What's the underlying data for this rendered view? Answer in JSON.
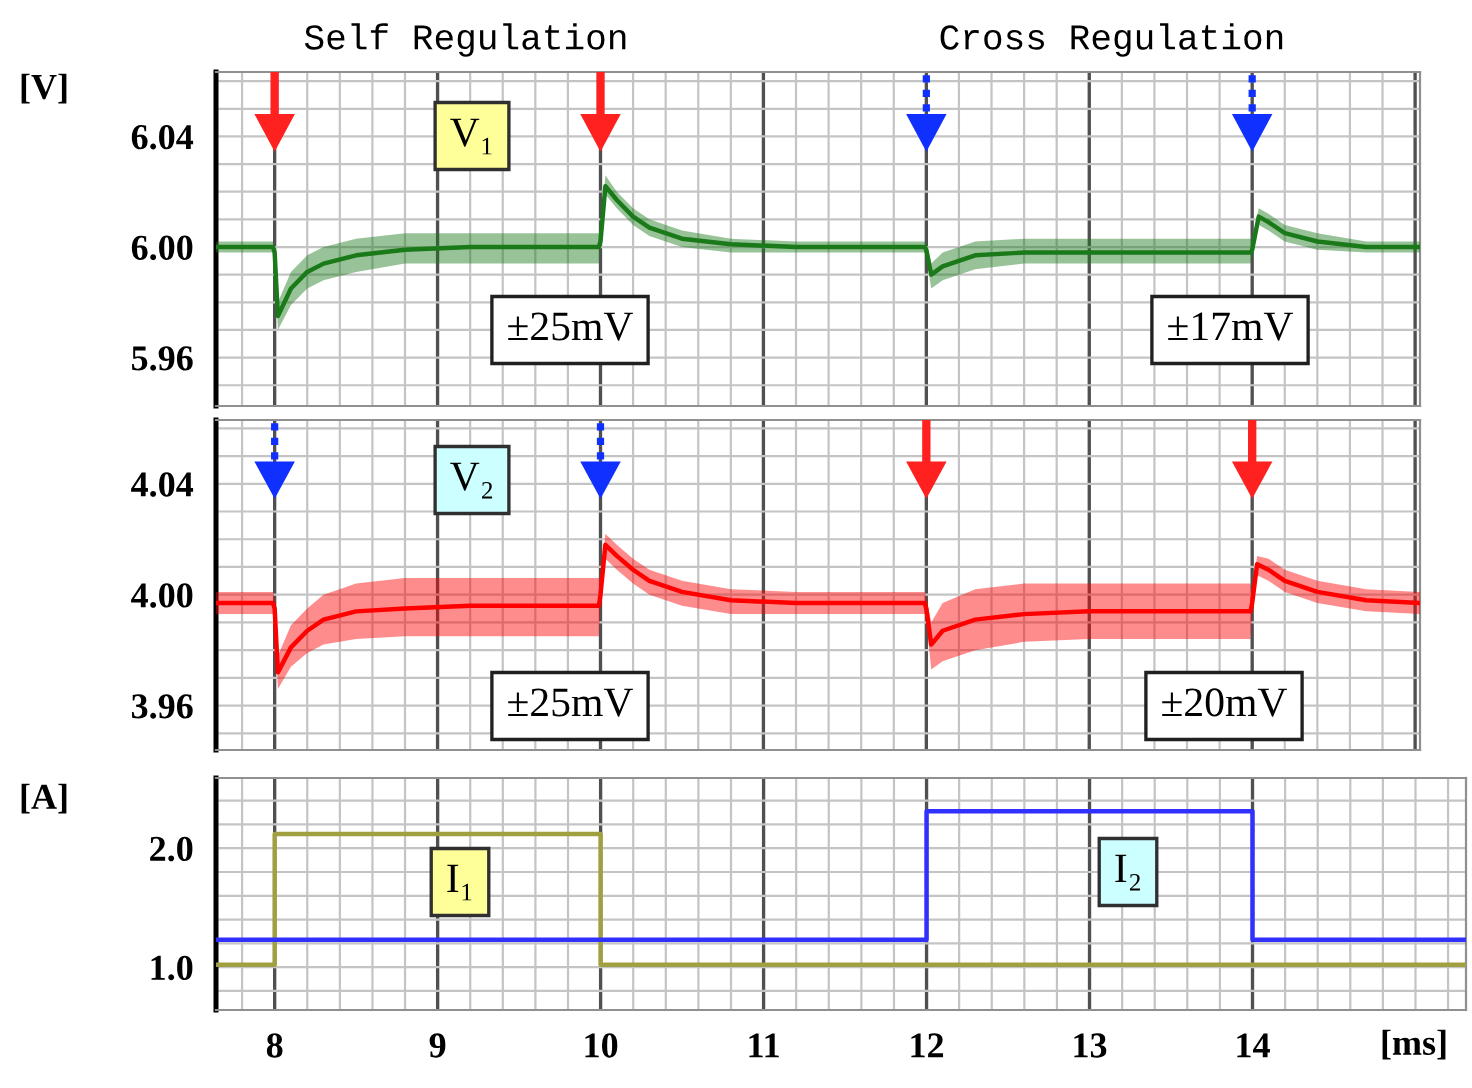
{
  "chart_data": [
    {
      "type": "line",
      "ylabel": "[V]",
      "annotations": [
        "Self Regulation",
        "Cross Regulation",
        "±25mV",
        "±17mV"
      ],
      "grid": true,
      "tick_labels": "y",
      "xlim": [
        7.64,
        15.03
      ],
      "ylim": [
        5.9425,
        6.0633
      ],
      "xticks": [
        {
          "value": 7.8,
          "label": null
        },
        8,
        {
          "value": 8.2,
          "label": null
        },
        {
          "value": 8.4,
          "label": null
        },
        {
          "value": 8.6,
          "label": null
        },
        {
          "value": 8.8,
          "label": null
        },
        9,
        {
          "value": 9.2,
          "label": null
        },
        {
          "value": 9.4,
          "label": null
        },
        {
          "value": 9.6,
          "label": null
        },
        {
          "value": 9.8,
          "label": null
        },
        10,
        {
          "value": 10.2,
          "label": null
        },
        {
          "value": 10.4,
          "label": null
        },
        {
          "value": 10.6,
          "label": null
        },
        {
          "value": 10.8,
          "label": null
        },
        11,
        {
          "value": 11.2,
          "label": null
        },
        {
          "value": 11.4,
          "label": null
        },
        {
          "value": 11.6,
          "label": null
        },
        {
          "value": 11.8,
          "label": null
        },
        12,
        {
          "value": 12.2,
          "label": null
        },
        {
          "value": 12.4,
          "label": null
        },
        {
          "value": 12.6,
          "label": null
        },
        {
          "value": 12.8,
          "label": null
        },
        13,
        {
          "value": 13.2,
          "label": null
        },
        {
          "value": 13.4,
          "label": null
        },
        {
          "value": 13.6,
          "label": null
        },
        {
          "value": 13.8,
          "label": null
        },
        14,
        {
          "value": 14.2,
          "label": null
        },
        {
          "value": 14.4,
          "label": null
        },
        {
          "value": 14.6,
          "label": null
        },
        {
          "value": 14.8,
          "label": null
        },
        15
      ],
      "yticks": [
        {
          "value": 5.95,
          "label": null
        },
        {
          "value": 5.96,
          "label": "5.96"
        },
        {
          "value": 5.97,
          "label": null
        },
        {
          "value": 5.98,
          "label": null
        },
        {
          "value": 5.99,
          "label": null
        },
        {
          "value": 6.0,
          "label": "6.00"
        },
        {
          "value": 6.01,
          "label": null
        },
        {
          "value": 6.02,
          "label": null
        },
        {
          "value": 6.03,
          "label": null
        },
        {
          "value": 6.04,
          "label": "6.04"
        },
        {
          "value": 6.05,
          "label": null
        },
        {
          "value": 6.06,
          "label": null
        }
      ],
      "series": [
        {
          "name": "V₁",
          "color": "#1a7a1a",
          "x": [
            7.64,
            7.99,
            8.0,
            8.02,
            8.1,
            8.2,
            8.3,
            8.5,
            8.8,
            9.2,
            9.99,
            10.0,
            10.03,
            10.1,
            10.2,
            10.3,
            10.5,
            10.8,
            11.2,
            11.99,
            12.0,
            12.03,
            12.1,
            12.3,
            12.6,
            13.0,
            13.99,
            14.0,
            14.04,
            14.1,
            14.2,
            14.4,
            14.7,
            15.03
          ],
          "values": [
            6.0,
            6.0,
            5.998,
            5.975,
            5.985,
            5.991,
            5.994,
            5.997,
            5.999,
            6.0,
            6.0,
            6.002,
            6.022,
            6.017,
            6.011,
            6.007,
            6.003,
            6.001,
            6.0,
            6.0,
            5.999,
            5.99,
            5.993,
            5.997,
            5.998,
            5.998,
            5.998,
            5.999,
            6.011,
            6.009,
            6.005,
            6.002,
            6.0,
            6.0
          ],
          "lower": [
            5.998,
            5.998,
            5.996,
            5.97,
            5.979,
            5.985,
            5.988,
            5.991,
            5.994,
            5.994,
            5.994,
            5.999,
            6.019,
            6.014,
            6.008,
            6.004,
            6.0,
            5.998,
            5.998,
            5.998,
            5.996,
            5.985,
            5.988,
            5.992,
            5.994,
            5.994,
            5.994,
            5.996,
            6.008,
            6.006,
            6.002,
            5.999,
            5.998,
            5.998
          ],
          "upper": [
            6.002,
            6.002,
            6.0,
            5.98,
            5.991,
            5.997,
            6.0,
            6.003,
            6.005,
            6.005,
            6.005,
            6.005,
            6.026,
            6.02,
            6.014,
            6.01,
            6.006,
            6.003,
            6.002,
            6.002,
            6.002,
            5.994,
            5.998,
            6.002,
            6.003,
            6.003,
            6.003,
            6.002,
            6.014,
            6.012,
            6.008,
            6.005,
            6.002,
            6.002
          ]
        }
      ]
    },
    {
      "type": "line",
      "annotations": [
        "±25mV",
        "±20mV"
      ],
      "grid": true,
      "tick_labels": "y",
      "xlim": [
        7.64,
        15.03
      ],
      "ylim": [
        3.944,
        4.063
      ],
      "xticks": [
        {
          "value": 7.8,
          "label": null
        },
        8,
        {
          "value": 8.2,
          "label": null
        },
        {
          "value": 8.4,
          "label": null
        },
        {
          "value": 8.6,
          "label": null
        },
        {
          "value": 8.8,
          "label": null
        },
        9,
        {
          "value": 9.2,
          "label": null
        },
        {
          "value": 9.4,
          "label": null
        },
        {
          "value": 9.6,
          "label": null
        },
        {
          "value": 9.8,
          "label": null
        },
        10,
        {
          "value": 10.2,
          "label": null
        },
        {
          "value": 10.4,
          "label": null
        },
        {
          "value": 10.6,
          "label": null
        },
        {
          "value": 10.8,
          "label": null
        },
        11,
        {
          "value": 11.2,
          "label": null
        },
        {
          "value": 11.4,
          "label": null
        },
        {
          "value": 11.6,
          "label": null
        },
        {
          "value": 11.8,
          "label": null
        },
        12,
        {
          "value": 12.2,
          "label": null
        },
        {
          "value": 12.4,
          "label": null
        },
        {
          "value": 12.6,
          "label": null
        },
        {
          "value": 12.8,
          "label": null
        },
        13,
        {
          "value": 13.2,
          "label": null
        },
        {
          "value": 13.4,
          "label": null
        },
        {
          "value": 13.6,
          "label": null
        },
        {
          "value": 13.8,
          "label": null
        },
        14,
        {
          "value": 14.2,
          "label": null
        },
        {
          "value": 14.4,
          "label": null
        },
        {
          "value": 14.6,
          "label": null
        },
        {
          "value": 14.8,
          "label": null
        },
        15
      ],
      "yticks": [
        {
          "value": 3.95,
          "label": null
        },
        {
          "value": 3.96,
          "label": "3.96"
        },
        {
          "value": 3.97,
          "label": null
        },
        {
          "value": 3.98,
          "label": null
        },
        {
          "value": 3.99,
          "label": null
        },
        {
          "value": 4.0,
          "label": "4.00"
        },
        {
          "value": 4.01,
          "label": null
        },
        {
          "value": 4.02,
          "label": null
        },
        {
          "value": 4.03,
          "label": null
        },
        {
          "value": 4.04,
          "label": "4.04"
        },
        {
          "value": 4.05,
          "label": null
        },
        {
          "value": 4.06,
          "label": null
        }
      ],
      "series": [
        {
          "name": "V₂",
          "color": "#ff0000",
          "x": [
            7.64,
            7.99,
            8.0,
            8.02,
            8.1,
            8.2,
            8.3,
            8.5,
            8.8,
            9.2,
            9.99,
            10.0,
            10.03,
            10.1,
            10.2,
            10.3,
            10.5,
            10.8,
            11.2,
            11.99,
            12.0,
            12.03,
            12.1,
            12.3,
            12.6,
            13.0,
            13.99,
            14.0,
            14.03,
            14.1,
            14.2,
            14.4,
            14.7,
            15.03
          ],
          "values": [
            3.997,
            3.997,
            3.995,
            3.972,
            3.981,
            3.987,
            3.991,
            3.994,
            3.995,
            3.996,
            3.996,
            4.0,
            4.018,
            4.014,
            4.009,
            4.005,
            4.001,
            3.998,
            3.997,
            3.997,
            3.995,
            3.982,
            3.987,
            3.991,
            3.993,
            3.994,
            3.994,
            3.997,
            4.011,
            4.009,
            4.005,
            4.001,
            3.998,
            3.997
          ],
          "lower": [
            3.993,
            3.993,
            3.991,
            3.966,
            3.974,
            3.979,
            3.982,
            3.984,
            3.985,
            3.985,
            3.985,
            3.996,
            4.013,
            4.009,
            4.004,
            4.0,
            3.996,
            3.993,
            3.993,
            3.993,
            3.991,
            3.973,
            3.976,
            3.98,
            3.983,
            3.984,
            3.984,
            3.993,
            4.007,
            4.005,
            4.001,
            3.997,
            3.994,
            3.993
          ],
          "upper": [
            4.001,
            4.001,
            3.999,
            3.978,
            3.989,
            3.995,
            4.0,
            4.004,
            4.006,
            4.006,
            4.006,
            4.004,
            4.022,
            4.018,
            4.013,
            4.009,
            4.005,
            4.002,
            4.001,
            4.001,
            3.999,
            3.99,
            3.997,
            4.002,
            4.004,
            4.004,
            4.004,
            4.001,
            4.014,
            4.013,
            4.009,
            4.005,
            4.002,
            4.001
          ]
        }
      ]
    },
    {
      "type": "step",
      "ylabel": "[A]",
      "xlabel": "[ms]",
      "grid": true,
      "xlim": [
        7.64,
        15.31
      ],
      "ylim": [
        0.64,
        2.59
      ],
      "xticks": [
        {
          "value": 7.8,
          "label": null
        },
        8,
        {
          "value": 8.2,
          "label": null
        },
        {
          "value": 8.4,
          "label": null
        },
        {
          "value": 8.6,
          "label": null
        },
        {
          "value": 8.8,
          "label": null
        },
        9,
        {
          "value": 9.2,
          "label": null
        },
        {
          "value": 9.4,
          "label": null
        },
        {
          "value": 9.6,
          "label": null
        },
        {
          "value": 9.8,
          "label": null
        },
        10,
        {
          "value": 10.2,
          "label": null
        },
        {
          "value": 10.4,
          "label": null
        },
        {
          "value": 10.6,
          "label": null
        },
        {
          "value": 10.8,
          "label": null
        },
        11,
        {
          "value": 11.2,
          "label": null
        },
        {
          "value": 11.4,
          "label": null
        },
        {
          "value": 11.6,
          "label": null
        },
        {
          "value": 11.8,
          "label": null
        },
        12,
        {
          "value": 12.2,
          "label": null
        },
        {
          "value": 12.4,
          "label": null
        },
        {
          "value": 12.6,
          "label": null
        },
        {
          "value": 12.8,
          "label": null
        },
        13,
        {
          "value": 13.2,
          "label": null
        },
        {
          "value": 13.4,
          "label": null
        },
        {
          "value": 13.6,
          "label": null
        },
        {
          "value": 13.8,
          "label": null
        },
        14,
        {
          "value": 14.2,
          "label": null
        },
        {
          "value": 14.4,
          "label": null
        },
        {
          "value": 14.6,
          "label": null
        },
        {
          "value": 14.8,
          "label": null
        },
        {
          "value": 15,
          "label": null
        },
        {
          "value": 15.2,
          "label": null
        }
      ],
      "yticks": [
        {
          "value": 0.8,
          "label": null
        },
        {
          "value": 1.0,
          "label": "1.0"
        },
        {
          "value": 1.2,
          "label": null
        },
        {
          "value": 1.4,
          "label": null
        },
        {
          "value": 1.6,
          "label": null
        },
        {
          "value": 1.8,
          "label": null
        },
        {
          "value": 2.0,
          "label": "2.0"
        },
        {
          "value": 2.2,
          "label": null
        },
        {
          "value": 2.4,
          "label": null
        }
      ],
      "series": [
        {
          "name": "I₁",
          "color": "#a0a040",
          "x": [
            7.64,
            8,
            10,
            15.31
          ],
          "values": [
            1.02,
            2.12,
            1.02,
            1.02
          ]
        },
        {
          "name": "I₂",
          "color": "#3030ff",
          "x": [
            7.64,
            12,
            14,
            15.31
          ],
          "values": [
            1.23,
            2.31,
            1.23,
            1.23
          ]
        }
      ]
    }
  ]
}
